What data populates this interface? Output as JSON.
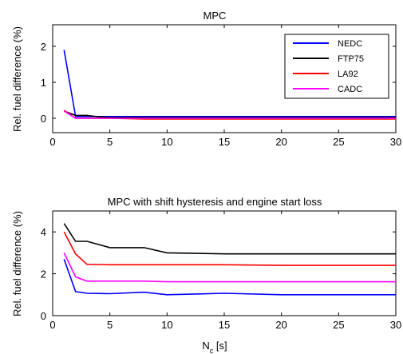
{
  "chart_data": [
    {
      "type": "line",
      "title": "MPC",
      "xlabel": "",
      "ylabel": "Rel. fuel difference (%)",
      "xlim": [
        0,
        30
      ],
      "ylim": [
        -0.4,
        2.6
      ],
      "xticks": [
        0,
        5,
        10,
        15,
        20,
        25,
        30
      ],
      "yticks": [
        0,
        1,
        2
      ],
      "grid": false,
      "legend_position": "top-right",
      "series": [
        {
          "name": "NEDC",
          "color": "#0000ff",
          "x": [
            1,
            2,
            3,
            4,
            5,
            8,
            10,
            15,
            20,
            30
          ],
          "y": [
            1.9,
            0.05,
            0.05,
            0.05,
            0.05,
            0.05,
            0.05,
            0.05,
            0.05,
            0.05
          ]
        },
        {
          "name": "FTP75",
          "color": "#000000",
          "x": [
            1,
            2,
            3,
            4,
            5,
            8,
            10,
            15,
            20,
            30
          ],
          "y": [
            0.2,
            0.08,
            0.08,
            0.04,
            0.02,
            0.02,
            0.02,
            0.02,
            0.02,
            0.02
          ]
        },
        {
          "name": "LA92",
          "color": "#ff0000",
          "x": [
            1,
            2,
            3,
            4,
            5,
            8,
            10,
            15,
            20,
            30
          ],
          "y": [
            0.22,
            0.0,
            0.0,
            0.0,
            0.0,
            -0.02,
            -0.02,
            -0.02,
            -0.02,
            -0.02
          ]
        },
        {
          "name": "CADC",
          "color": "#ff00ff",
          "x": [
            1,
            2,
            3,
            4,
            5,
            8,
            10,
            15,
            20,
            30
          ],
          "y": [
            0.2,
            0.0,
            0.0,
            0.0,
            0.0,
            0.0,
            0.0,
            0.0,
            0.0,
            0.0
          ]
        }
      ]
    },
    {
      "type": "line",
      "title": "MPC with shift hysteresis and engine start loss",
      "xlabel": "N_c [s]",
      "ylabel": "Rel. fuel difference (%)",
      "xlim": [
        0,
        30
      ],
      "ylim": [
        0,
        5
      ],
      "xticks": [
        0,
        5,
        10,
        15,
        20,
        25,
        30
      ],
      "yticks": [
        0,
        2,
        4
      ],
      "grid": false,
      "series": [
        {
          "name": "NEDC",
          "color": "#0000ff",
          "x": [
            1,
            2,
            3,
            5,
            8,
            10,
            15,
            20,
            30
          ],
          "y": [
            2.7,
            1.15,
            1.07,
            1.05,
            1.12,
            1.0,
            1.07,
            1.0,
            1.0
          ]
        },
        {
          "name": "FTP75",
          "color": "#000000",
          "x": [
            1,
            2,
            3,
            5,
            8,
            10,
            15,
            20,
            30
          ],
          "y": [
            4.4,
            3.55,
            3.55,
            3.25,
            3.25,
            3.0,
            2.95,
            2.95,
            2.95
          ]
        },
        {
          "name": "LA92",
          "color": "#ff0000",
          "x": [
            1,
            2,
            3,
            5,
            8,
            10,
            15,
            20,
            30
          ],
          "y": [
            4.0,
            2.95,
            2.45,
            2.43,
            2.43,
            2.43,
            2.43,
            2.4,
            2.4
          ]
        },
        {
          "name": "CADC",
          "color": "#ff00ff",
          "x": [
            1,
            2,
            3,
            5,
            8,
            10,
            15,
            20,
            30
          ],
          "y": [
            3.0,
            1.85,
            1.65,
            1.65,
            1.65,
            1.62,
            1.62,
            1.62,
            1.62
          ]
        }
      ]
    }
  ],
  "xlabel_parts": {
    "main": "N",
    "sub": "c",
    "rest": " [s]"
  }
}
